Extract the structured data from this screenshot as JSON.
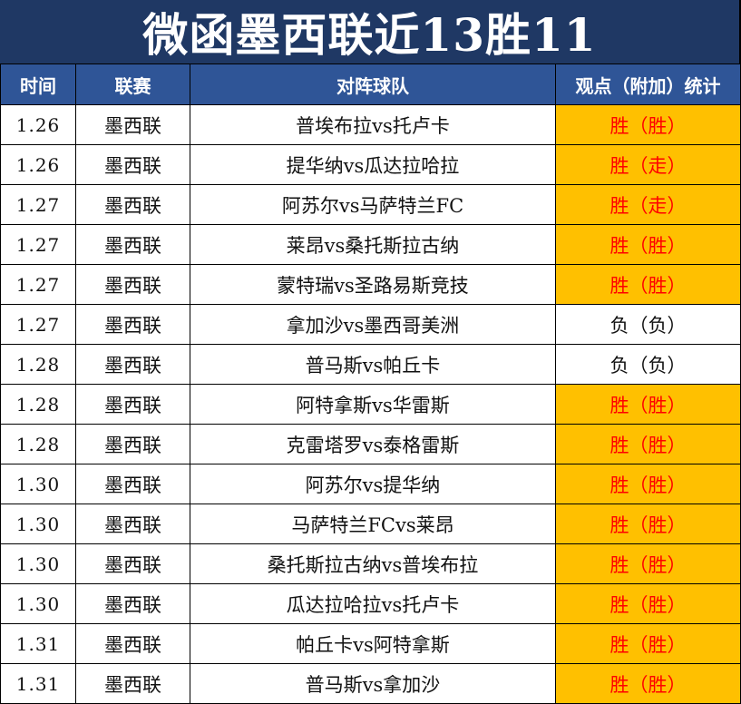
{
  "title": "微函墨西联近13胜11",
  "headers": {
    "time": "时间",
    "league": "联赛",
    "match": "对阵球队",
    "stat": "观点（附加）统计"
  },
  "rows": [
    {
      "date": "1.26",
      "league": "墨西联",
      "match": "普埃布拉vs托卢卡",
      "result": "胜（胜）",
      "status": "win"
    },
    {
      "date": "1.26",
      "league": "墨西联",
      "match": "提华纳vs瓜达拉哈拉",
      "result": "胜（走）",
      "status": "win"
    },
    {
      "date": "1.27",
      "league": "墨西联",
      "match": "阿苏尔vs马萨特兰FC",
      "result": "胜（走）",
      "status": "win"
    },
    {
      "date": "1.27",
      "league": "墨西联",
      "match": "莱昂vs桑托斯拉古纳",
      "result": "胜（胜）",
      "status": "win"
    },
    {
      "date": "1.27",
      "league": "墨西联",
      "match": "蒙特瑞vs圣路易斯竞技",
      "result": "胜（胜）",
      "status": "win"
    },
    {
      "date": "1.27",
      "league": "墨西联",
      "match": "拿加沙vs墨西哥美洲",
      "result": "负（负）",
      "status": "lose"
    },
    {
      "date": "1.28",
      "league": "墨西联",
      "match": "普马斯vs帕丘卡",
      "result": "负（负）",
      "status": "lose"
    },
    {
      "date": "1.28",
      "league": "墨西联",
      "match": "阿特拿斯vs华雷斯",
      "result": "胜（胜）",
      "status": "win"
    },
    {
      "date": "1.28",
      "league": "墨西联",
      "match": "克雷塔罗vs泰格雷斯",
      "result": "胜（胜）",
      "status": "win"
    },
    {
      "date": "1.30",
      "league": "墨西联",
      "match": "阿苏尔vs提华纳",
      "result": "胜（胜）",
      "status": "win"
    },
    {
      "date": "1.30",
      "league": "墨西联",
      "match": "马萨特兰FCvs莱昂",
      "result": "胜（胜）",
      "status": "win"
    },
    {
      "date": "1.30",
      "league": "墨西联",
      "match": "桑托斯拉古纳vs普埃布拉",
      "result": "胜（胜）",
      "status": "win"
    },
    {
      "date": "1.30",
      "league": "墨西联",
      "match": "瓜达拉哈拉vs托卢卡",
      "result": "胜（胜）",
      "status": "win"
    },
    {
      "date": "1.31",
      "league": "墨西联",
      "match": "帕丘卡vs阿特拿斯",
      "result": "胜（胜）",
      "status": "win"
    },
    {
      "date": "1.31",
      "league": "墨西联",
      "match": "普马斯vs拿加沙",
      "result": "胜（胜）",
      "status": "win"
    }
  ],
  "colors": {
    "title_bg": "#1f3864",
    "header_bg": "#2f5597",
    "win_bg": "#ffc000",
    "win_text": "#ff0000"
  }
}
